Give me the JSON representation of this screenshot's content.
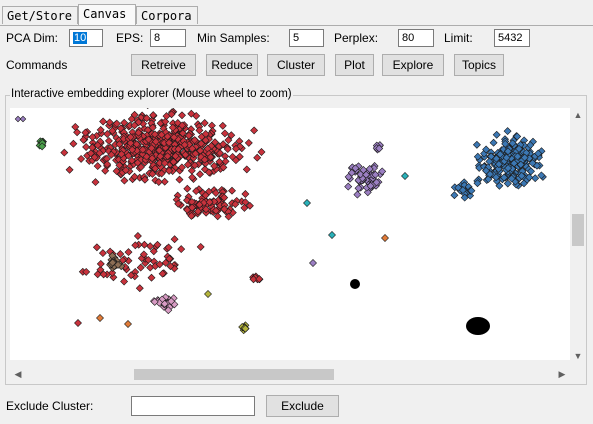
{
  "tabs": [
    {
      "label": "Get/Store"
    },
    {
      "label": "Canvas"
    },
    {
      "label": "Corpora"
    }
  ],
  "params": {
    "pca_dim_label": "PCA Dim:",
    "pca_dim_value": "10",
    "eps_label": "EPS:",
    "eps_value": "8",
    "min_samples_label": "Min Samples:",
    "min_samples_value": "5",
    "perplex_label": "Perplex:",
    "perplex_value": "80",
    "limit_label": "Limit:",
    "limit_value": "5432"
  },
  "commands": {
    "label": "Commands",
    "buttons": [
      "Retreive",
      "Reduce",
      "Cluster",
      "Plot",
      "Explore",
      "Topics"
    ]
  },
  "explorer": {
    "title": "Interactive embedding explorer (Mouse wheel to zoom)"
  },
  "exclude": {
    "label": "Exclude Cluster:",
    "value": "",
    "button": "Exclude"
  },
  "colors": {
    "red_cluster": "#c8323c",
    "blue_cluster": "#3c78b4",
    "purple_cluster": "#9b7fc2",
    "brown_cluster": "#8c6e55",
    "pink_cluster": "#d79bc3",
    "green_cluster": "#4ca04c",
    "olive_cluster": "#b4b43c",
    "orange_cluster": "#e07b39",
    "teal_cluster": "#2ab0b8",
    "black_cluster": "#000000"
  }
}
